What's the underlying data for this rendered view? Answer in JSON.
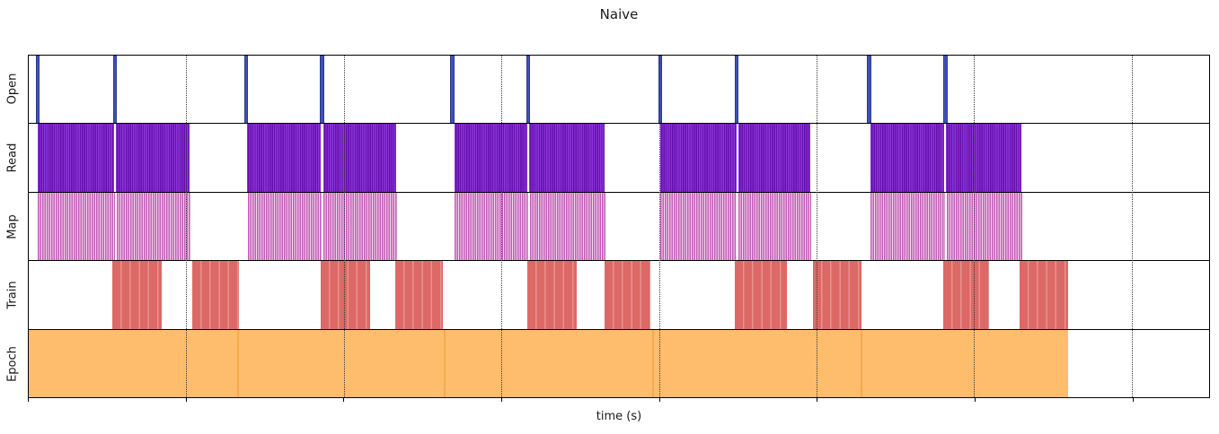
{
  "figure": {
    "title": "Naive",
    "xlabel": "time (s)"
  },
  "chart_data": {
    "type": "broken-bar-timeline",
    "title": "Naive",
    "xlabel": "time (s)",
    "legend": "none",
    "x_axis": {
      "min": 0,
      "max": 1316,
      "ticks": [
        0,
        175.6,
        351.3,
        526.9,
        702.6,
        878.2,
        1053.9,
        1229.5
      ],
      "tick_labels_visible": false,
      "gridline_style": "dotted"
    },
    "rows": [
      {
        "label": "Open",
        "render": "events",
        "color": "#3f51b5",
        "edge_color": "#2c3990",
        "event_width": 4.5,
        "events": [
          10,
          96,
          242.5,
          327,
          472,
          557,
          704,
          789,
          937,
          1022
        ]
      },
      {
        "label": "Read",
        "render": "stripes",
        "stripe_colors": [
          "#8a35d6",
          "#650fae"
        ],
        "stripe_widths": [
          1.2,
          1.2
        ],
        "intervals": [
          [
            10,
            95
          ],
          [
            97,
            179
          ],
          [
            243,
            326
          ],
          [
            328,
            410
          ],
          [
            475,
            556
          ],
          [
            558,
            642
          ],
          [
            704,
            789
          ],
          [
            791,
            871
          ],
          [
            938,
            1021
          ],
          [
            1023,
            1107
          ]
        ]
      },
      {
        "label": "Map",
        "render": "stripes",
        "stripe_colors": [
          "#c35bb6",
          "#f3d9ee"
        ],
        "stripe_widths": [
          1.7,
          0.8
        ],
        "intervals": [
          [
            10,
            96
          ],
          [
            98,
            180
          ],
          [
            244,
            326
          ],
          [
            328,
            411
          ],
          [
            475,
            557
          ],
          [
            559,
            643
          ],
          [
            704,
            789
          ],
          [
            791,
            872
          ],
          [
            938,
            1022
          ],
          [
            1024,
            1108
          ]
        ]
      },
      {
        "label": "Train",
        "render": "stripes",
        "stripe_colors": [
          "#dc6965",
          "#e9918e"
        ],
        "stripe_widths": [
          8.8,
          1.5
        ],
        "intervals": [
          [
            93,
            148
          ],
          [
            182,
            234
          ],
          [
            325,
            381
          ],
          [
            409,
            462
          ],
          [
            556,
            611
          ],
          [
            642,
            693
          ],
          [
            787,
            845
          ],
          [
            874,
            928
          ],
          [
            1020,
            1071
          ],
          [
            1105,
            1159
          ]
        ]
      },
      {
        "label": "Epoch",
        "render": "blocks",
        "color": "#fdbd6d",
        "separator_color": "#f8a94c",
        "intervals": [
          [
            0,
            232
          ],
          [
            232,
            463
          ],
          [
            463,
            695
          ],
          [
            695,
            927
          ],
          [
            927,
            1159
          ]
        ]
      }
    ]
  }
}
